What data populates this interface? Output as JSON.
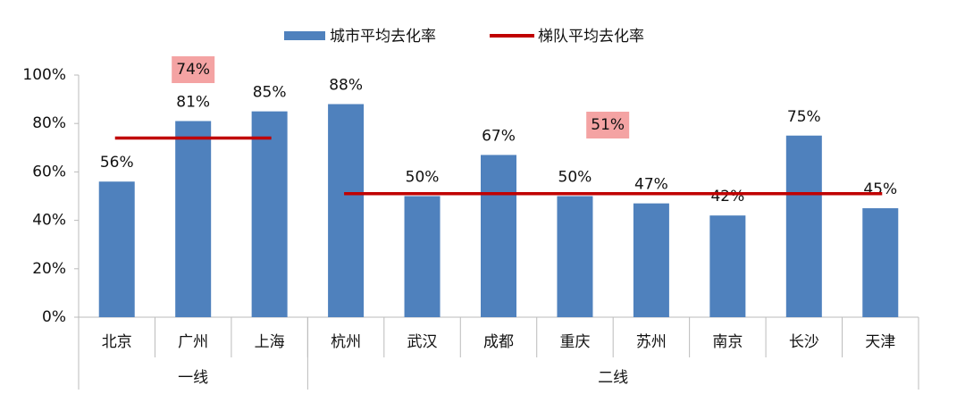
{
  "chart_data": {
    "type": "bar",
    "series": [
      {
        "name": "城市平均去化率",
        "color": "#4f81bd"
      },
      {
        "name": "梯队平均去化率",
        "color": "#c00000",
        "type": "line"
      }
    ],
    "groups": [
      {
        "label": "一线",
        "categories": [
          "北京",
          "广州",
          "上海"
        ],
        "values": [
          56,
          81,
          85
        ],
        "value_labels": [
          "56%",
          "81%",
          "85%"
        ],
        "average": 74,
        "average_label": "74%"
      },
      {
        "label": "二线",
        "categories": [
          "杭州",
          "武汉",
          "成都",
          "重庆",
          "苏州",
          "南京",
          "长沙",
          "天津"
        ],
        "values": [
          88,
          50,
          67,
          50,
          47,
          42,
          75,
          45
        ],
        "value_labels": [
          "88%",
          "50%",
          "67%",
          "50%",
          "47%",
          "42%",
          "75%",
          "45%"
        ],
        "average": 51,
        "average_label": "51%"
      }
    ],
    "ylim": [
      0,
      100
    ],
    "yticks": [
      {
        "value": 0,
        "label": "0%"
      },
      {
        "value": 20,
        "label": "20%"
      },
      {
        "value": 40,
        "label": "40%"
      },
      {
        "value": 60,
        "label": "60%"
      },
      {
        "value": 80,
        "label": "80%"
      },
      {
        "value": 100,
        "label": "100%"
      }
    ]
  }
}
